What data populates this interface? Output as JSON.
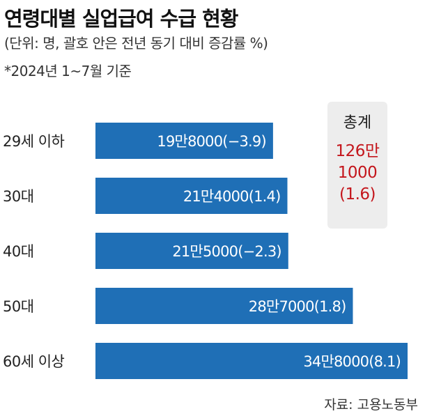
{
  "title": "연령대별 실업급여 수급 현황",
  "subtitle": "(단위: 명, 괄호 안은 전년 동기 대비 증감률 %)",
  "note": "*2024년 1~7월 기준",
  "total": {
    "label": "총계",
    "line1": "126만",
    "line2": "1000",
    "line3": "(1.6)"
  },
  "source": "자료: 고용노동부",
  "colors": {
    "bar": "#1f6fb6",
    "total_text": "#c4161c",
    "total_bg": "#ededed"
  },
  "chart_data": {
    "type": "bar",
    "orientation": "horizontal",
    "categories": [
      "29세 이하",
      "30대",
      "40대",
      "50대",
      "60세 이상"
    ],
    "values": [
      198000,
      214000,
      215000,
      287000,
      348000
    ],
    "change_pct": [
      -3.9,
      1.4,
      -2.3,
      1.8,
      8.1
    ],
    "value_labels": [
      "19만8000(−3.9)",
      "21만4000(1.4)",
      "21만5000(−2.3)",
      "28만7000(1.8)",
      "34만8000(8.1)"
    ]
  }
}
